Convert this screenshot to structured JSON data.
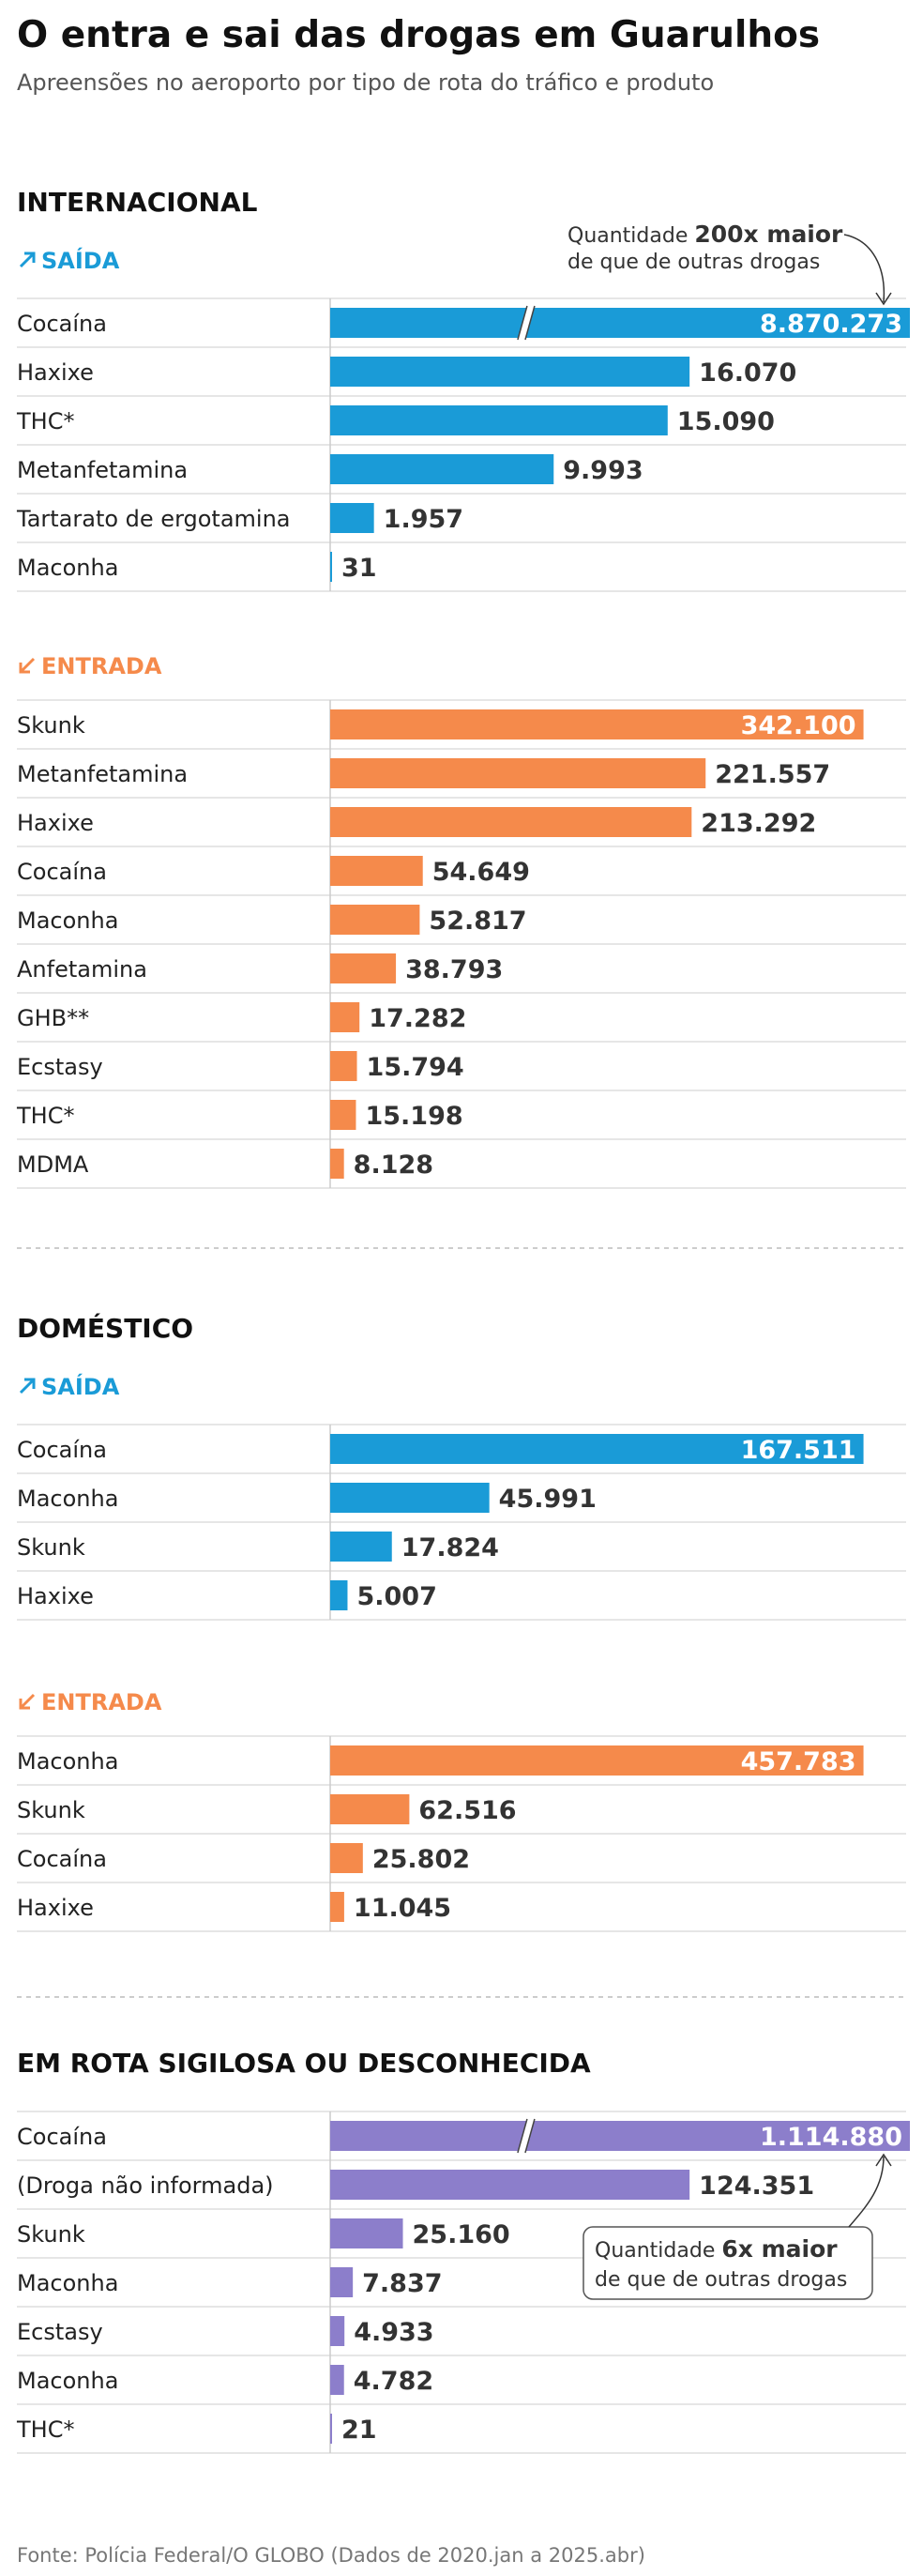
{
  "title": "O entra e sai das drogas em Guarulhos",
  "subtitle": "Apreensões no aeroporto por tipo de rota do tráfico e produto",
  "source": "Fonte: Polícia Federal/O GLOBO (Dados de 2020.jan a 2025.abr)",
  "colors": {
    "saida": "#1a9bd7",
    "entrada": "#f58a4b",
    "sigilosa": "#8c7ecb",
    "rule": "#dddddd",
    "axis": "#cccccc",
    "dashed": "#bbbbbb"
  },
  "icons": {
    "saida": "arrow-up-right-icon",
    "entrada": "arrow-down-left-icon"
  },
  "chart_data": {
    "type": "bar",
    "orientation": "horizontal",
    "unit": "apreensões",
    "sections": [
      {
        "title": "INTERNACIONAL",
        "groups": [
          {
            "name": "SAÍDA",
            "color_key": "saida",
            "icon": "arrow-up-right-icon",
            "categories": [
              "Cocaína",
              "Haxixe",
              "THC*",
              "Metanfetamina",
              "Tartarato de ergotamina",
              "Maconha"
            ],
            "values": [
              8870273,
              16070,
              15090,
              9993,
              1957,
              31
            ],
            "labels": [
              "8.870.273",
              "16.070",
              "15.090",
              "9.993",
              "1.957",
              "31"
            ],
            "axis_break_on_first": true,
            "annotation": {
              "prefix": "Quantidade ",
              "bold": "200x maior",
              "line2": "de que de outras drogas"
            }
          },
          {
            "name": "ENTRADA",
            "color_key": "entrada",
            "icon": "arrow-down-left-icon",
            "categories": [
              "Skunk",
              "Metanfetamina",
              "Haxixe",
              "Cocaína",
              "Maconha",
              "Anfetamina",
              "GHB**",
              "Ecstasy",
              "THC*",
              "MDMA"
            ],
            "values": [
              342100,
              221557,
              213292,
              54649,
              52817,
              38793,
              17282,
              15794,
              15198,
              8128
            ],
            "labels": [
              "342.100",
              "221.557",
              "213.292",
              "54.649",
              "52.817",
              "38.793",
              "17.282",
              "15.794",
              "15.198",
              "8.128"
            ]
          }
        ]
      },
      {
        "title": "DOMÉSTICO",
        "groups": [
          {
            "name": "SAÍDA",
            "color_key": "saida",
            "icon": "arrow-up-right-icon",
            "categories": [
              "Cocaína",
              "Maconha",
              "Skunk",
              "Haxixe"
            ],
            "values": [
              167511,
              45991,
              17824,
              5007
            ],
            "labels": [
              "167.511",
              "45.991",
              "17.824",
              "5.007"
            ]
          },
          {
            "name": "ENTRADA",
            "color_key": "entrada",
            "icon": "arrow-down-left-icon",
            "categories": [
              "Maconha",
              "Skunk",
              "Cocaína",
              "Haxixe"
            ],
            "values": [
              457783,
              62516,
              25802,
              11045
            ],
            "labels": [
              "457.783",
              "62.516",
              "25.802",
              "11.045"
            ]
          }
        ]
      },
      {
        "title": "EM ROTA SIGILOSA OU DESCONHECIDA",
        "groups": [
          {
            "name": "",
            "color_key": "sigilosa",
            "icon": "",
            "categories": [
              "Cocaína",
              "(Droga não informada)",
              "Skunk",
              "Maconha",
              "Ecstasy",
              "Maconha",
              "THC*"
            ],
            "values": [
              1114880,
              124351,
              25160,
              7837,
              4933,
              4782,
              21
            ],
            "labels": [
              "1.114.880",
              "124.351",
              "25.160",
              "7.837",
              "4.933",
              "4.782",
              "21"
            ],
            "axis_break_on_first": true,
            "annotation": {
              "prefix": "Quantidade ",
              "bold": "6x maior",
              "line2": "de que de outras drogas"
            }
          }
        ]
      }
    ]
  }
}
